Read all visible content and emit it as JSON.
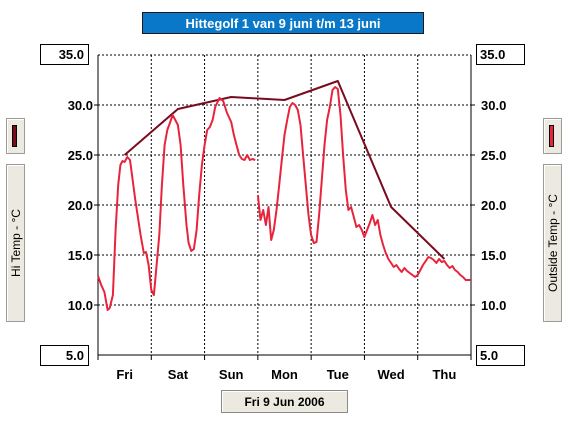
{
  "title": "Hittegolf 1 van  9 juni t/m 13 juni",
  "date_button": "Fri 9 Jun 2006",
  "left_axis": {
    "label": "Hi Temp - °C",
    "top_value": "35.0",
    "bottom_value": "5.0",
    "swatch_color": "#7a0a1e"
  },
  "right_axis": {
    "label": "Outside Temp - °C",
    "top_value": "35.0",
    "bottom_value": "5.0",
    "swatch_color": "#e8243c"
  },
  "colors": {
    "hi_temp": "#7a0a1e",
    "outside_temp": "#e8243c",
    "title_bg": "#0a78c8"
  },
  "chart_data": {
    "type": "line",
    "x_unit": "days since Fri 00:00",
    "xlim": [
      0,
      7
    ],
    "ylim": [
      5,
      35
    ],
    "yticks": [
      5,
      10,
      15,
      20,
      25,
      30,
      35
    ],
    "ytick_labels": [
      "5.0",
      "10.0",
      "15.0",
      "20.0",
      "25.0",
      "30.0",
      "35.0"
    ],
    "day_labels": [
      "Fri",
      "Sat",
      "Sun",
      "Mon",
      "Tue",
      "Wed",
      "Thu"
    ],
    "grid": true,
    "series": [
      {
        "name": "Hi Temp",
        "axis": "left",
        "color": "#7a0a1e",
        "x": [
          0.5,
          1.5,
          2.5,
          3.5,
          4.5,
          5.5,
          6.5
        ],
        "y": [
          25.0,
          29.6,
          30.8,
          30.5,
          32.4,
          19.8,
          14.6
        ]
      },
      {
        "name": "Outside Temp",
        "axis": "right",
        "color": "#e8243c",
        "segments": [
          {
            "x": [
              0.0,
              0.06,
              0.12,
              0.18,
              0.22,
              0.28,
              0.33,
              0.38,
              0.42,
              0.46,
              0.5,
              0.55,
              0.6,
              0.7,
              0.8,
              0.86,
              0.9,
              0.95,
              1.0,
              1.05,
              1.1,
              1.15,
              1.2,
              1.25,
              1.3,
              1.35,
              1.4,
              1.45,
              1.5,
              1.55,
              1.6,
              1.66,
              1.7,
              1.75,
              1.8,
              1.85,
              1.9,
              1.95,
              2.0,
              2.05,
              2.1,
              2.15,
              2.2,
              2.28,
              2.35,
              2.42,
              2.5,
              2.55,
              2.6,
              2.65,
              2.7,
              2.75,
              2.8,
              2.85,
              2.9,
              2.95
            ],
            "y": [
              12.9,
              12.0,
              11.3,
              9.5,
              9.7,
              11.0,
              17.5,
              22.0,
              24.0,
              24.4,
              24.3,
              24.8,
              24.5,
              20.5,
              17.0,
              15.2,
              15.3,
              14.0,
              11.5,
              11.0,
              14.0,
              17.0,
              22.0,
              26.0,
              27.5,
              28.2,
              29.0,
              28.5,
              28.0,
              26.0,
              22.0,
              18.0,
              16.2,
              15.4,
              15.6,
              17.5,
              21.0,
              24.0,
              26.0,
              27.5,
              27.8,
              28.5,
              29.8,
              30.7,
              30.4,
              29.2,
              28.3,
              27.0,
              26.0,
              25.0,
              24.6,
              24.5,
              25.0,
              24.5,
              24.6,
              24.5
            ]
          },
          {
            "x": [
              3.0,
              3.02,
              3.05,
              3.1,
              3.15,
              3.2,
              3.25,
              3.3,
              3.35,
              3.4,
              3.45,
              3.5,
              3.55,
              3.6,
              3.65,
              3.7,
              3.75,
              3.8,
              3.85,
              3.9,
              3.95,
              4.0,
              4.05,
              4.1,
              4.15,
              4.2,
              4.25,
              4.3,
              4.35,
              4.4,
              4.45,
              4.5,
              4.55,
              4.6,
              4.65,
              4.7,
              4.75,
              4.8,
              4.85,
              4.9,
              4.95,
              5.0,
              5.05,
              5.1,
              5.15,
              5.2,
              5.25,
              5.3,
              5.35,
              5.4,
              5.45,
              5.5,
              5.55,
              5.6,
              5.65,
              5.7,
              5.75,
              5.8,
              5.85,
              5.9,
              5.95,
              6.0,
              6.05,
              6.1,
              6.15,
              6.2,
              6.25,
              6.3,
              6.35,
              6.4,
              6.45,
              6.5,
              6.55,
              6.6,
              6.65,
              6.7,
              6.75,
              6.8,
              6.85,
              6.9,
              6.95,
              7.0
            ],
            "y": [
              21.0,
              20.0,
              18.5,
              19.5,
              18.0,
              19.8,
              16.5,
              17.5,
              19.5,
              22.0,
              24.5,
              27.0,
              28.5,
              29.8,
              30.2,
              30.0,
              29.5,
              28.0,
              25.0,
              22.0,
              19.0,
              17.0,
              16.2,
              16.3,
              19.0,
              22.5,
              26.0,
              28.5,
              29.8,
              31.5,
              31.8,
              31.6,
              29.0,
              25.0,
              21.5,
              19.5,
              19.8,
              18.8,
              17.8,
              18.0,
              17.5,
              16.8,
              17.5,
              18.2,
              19.0,
              18.0,
              18.5,
              17.0,
              16.0,
              15.2,
              14.6,
              14.2,
              13.8,
              14.0,
              13.6,
              13.3,
              13.7,
              13.4,
              13.2,
              13.0,
              12.8,
              13.0,
              13.5,
              14.0,
              14.4,
              14.8,
              14.7,
              14.5,
              14.2,
              14.6,
              14.3,
              14.4,
              14.0,
              13.7,
              13.9,
              13.5,
              13.3,
              13.0,
              12.8,
              12.5,
              12.5,
              12.5
            ]
          }
        ]
      }
    ]
  }
}
